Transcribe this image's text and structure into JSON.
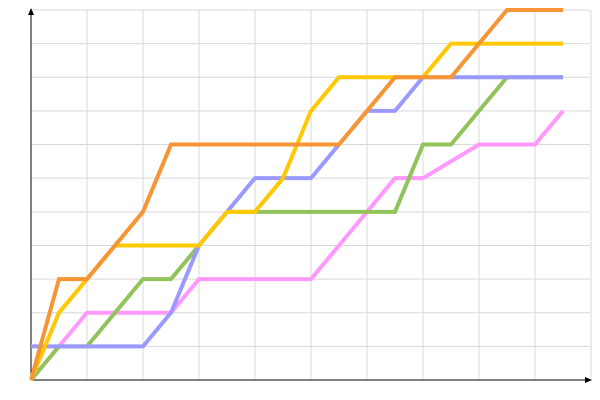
{
  "chart_data": {
    "type": "line",
    "title": "",
    "xlabel": "",
    "ylabel": "",
    "xlim": [
      0,
      10
    ],
    "ylim": [
      0,
      11
    ],
    "grid": true,
    "legend": "none",
    "series": [
      {
        "color": "#ff99ff",
        "points": [
          [
            0,
            0
          ],
          [
            1,
            2
          ],
          [
            2.5,
            2
          ],
          [
            3,
            3
          ],
          [
            5,
            3
          ],
          [
            6.5,
            6
          ],
          [
            7,
            6
          ],
          [
            8,
            7
          ],
          [
            9,
            7
          ],
          [
            9.5,
            8
          ]
        ]
      },
      {
        "color": "#92c35a",
        "points": [
          [
            0,
            0
          ],
          [
            0.5,
            1
          ],
          [
            1,
            1
          ],
          [
            2,
            3
          ],
          [
            2.5,
            3
          ],
          [
            3,
            4
          ],
          [
            3.5,
            5
          ],
          [
            6.5,
            5
          ],
          [
            7,
            7
          ],
          [
            7.5,
            7
          ],
          [
            8.5,
            9
          ],
          [
            9.5,
            9
          ]
        ]
      },
      {
        "color": "#9999ff",
        "points": [
          [
            0,
            1
          ],
          [
            2,
            1
          ],
          [
            2.5,
            2
          ],
          [
            3,
            4
          ],
          [
            3.5,
            5
          ],
          [
            4,
            6
          ],
          [
            5,
            6
          ],
          [
            6,
            8
          ],
          [
            6.5,
            8
          ],
          [
            7,
            9
          ],
          [
            9.5,
            9
          ]
        ]
      },
      {
        "color": "#ffc800",
        "points": [
          [
            0,
            0
          ],
          [
            0.5,
            2
          ],
          [
            1,
            3
          ],
          [
            1.5,
            4
          ],
          [
            3,
            4
          ],
          [
            3.5,
            5
          ],
          [
            4,
            5
          ],
          [
            4.5,
            6
          ],
          [
            5,
            8
          ],
          [
            5.5,
            9
          ],
          [
            7,
            9
          ],
          [
            7.5,
            10
          ],
          [
            9.5,
            10
          ]
        ]
      },
      {
        "color": "#f79433",
        "points": [
          [
            0,
            0
          ],
          [
            0.5,
            3
          ],
          [
            1,
            3
          ],
          [
            2,
            5
          ],
          [
            2.5,
            7
          ],
          [
            5.5,
            7
          ],
          [
            6.5,
            9
          ],
          [
            7.5,
            9
          ],
          [
            8.5,
            11
          ],
          [
            9.5,
            11
          ]
        ]
      }
    ]
  }
}
